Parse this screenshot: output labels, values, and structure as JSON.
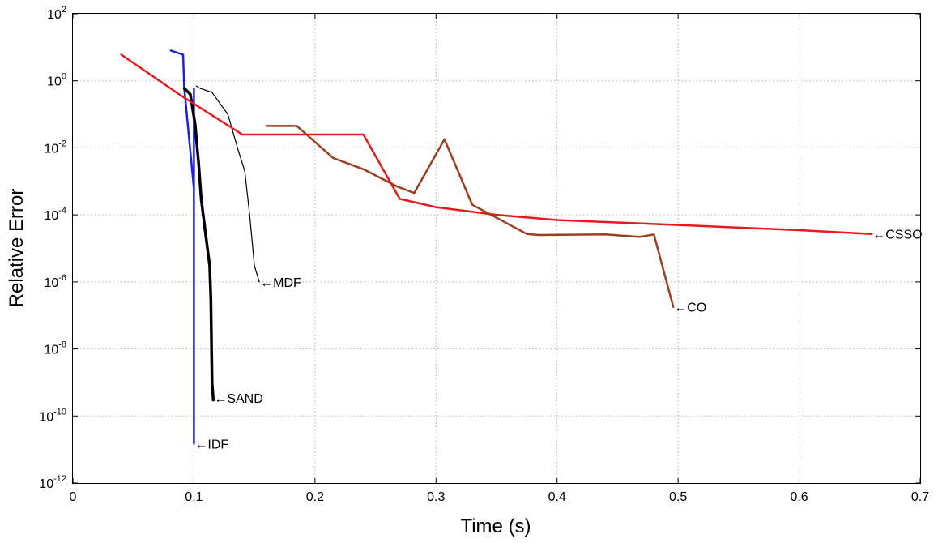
{
  "chart_data": {
    "type": "line",
    "title": "",
    "xlabel": "Time (s)",
    "ylabel": "Relative Error",
    "xlim": [
      0,
      0.7
    ],
    "ylim_exponent": [
      -12,
      2
    ],
    "y_scale": "log",
    "grid": true,
    "x_ticks": [
      "0",
      "0.1",
      "0.2",
      "0.3",
      "0.4",
      "0.5",
      "0.6",
      "0.7"
    ],
    "x_tick_values": [
      0,
      0.1,
      0.2,
      0.3,
      0.4,
      0.5,
      0.6,
      0.7
    ],
    "y_ticks": [
      {
        "base": "10",
        "exp": "-12",
        "value_exp": -12
      },
      {
        "base": "10",
        "exp": "-10",
        "value_exp": -10
      },
      {
        "base": "10",
        "exp": "-8",
        "value_exp": -8
      },
      {
        "base": "10",
        "exp": "-6",
        "value_exp": -6
      },
      {
        "base": "10",
        "exp": "-4",
        "value_exp": -4
      },
      {
        "base": "10",
        "exp": "-2",
        "value_exp": -2
      },
      {
        "base": "10",
        "exp": "0",
        "value_exp": 0
      },
      {
        "base": "10",
        "exp": "2",
        "value_exp": 2
      }
    ],
    "series": [
      {
        "name": "IDF",
        "color": "#1f1fe0",
        "width": 2.5,
        "points": [
          [
            0.081,
            8.0
          ],
          [
            0.091,
            6.0
          ],
          [
            0.092,
            0.6
          ],
          [
            0.1,
            0.0006
          ],
          [
            0.1,
            0.6
          ],
          [
            0.1,
            1.5e-11
          ]
        ]
      },
      {
        "name": "SAND",
        "color": "#000000",
        "width": 3.5,
        "points": [
          [
            0.092,
            0.6
          ],
          [
            0.097,
            0.4
          ],
          [
            0.101,
            0.05
          ],
          [
            0.104,
            0.003
          ],
          [
            0.106,
            0.0003
          ],
          [
            0.109,
            4e-05
          ],
          [
            0.113,
            3e-06
          ],
          [
            0.114,
            3e-07
          ],
          [
            0.115,
            1e-09
          ],
          [
            0.116,
            3e-10
          ]
        ]
      },
      {
        "name": "MDF",
        "color": "#000000",
        "width": 1.2,
        "points": [
          [
            0.102,
            0.7
          ],
          [
            0.105,
            0.6
          ],
          [
            0.115,
            0.45
          ],
          [
            0.128,
            0.1
          ],
          [
            0.136,
            0.01
          ],
          [
            0.142,
            0.002
          ],
          [
            0.146,
            0.0001
          ],
          [
            0.15,
            3e-06
          ],
          [
            0.154,
            1e-06
          ]
        ]
      },
      {
        "name": "CSSO",
        "color": "#e8191c",
        "width": 2.5,
        "points": [
          [
            0.04,
            6.0
          ],
          [
            0.09,
            0.35
          ],
          [
            0.14,
            0.025
          ],
          [
            0.24,
            0.025
          ],
          [
            0.27,
            0.0003
          ],
          [
            0.3,
            0.00017
          ],
          [
            0.35,
            0.0001
          ],
          [
            0.4,
            7e-05
          ],
          [
            0.5,
            5e-05
          ],
          [
            0.6,
            3.5e-05
          ],
          [
            0.66,
            2.7e-05
          ]
        ]
      },
      {
        "name": "CO",
        "color": "#9a3f1f",
        "width": 2.5,
        "points": [
          [
            0.16,
            0.045
          ],
          [
            0.185,
            0.045
          ],
          [
            0.215,
            0.005
          ],
          [
            0.24,
            0.0023
          ],
          [
            0.268,
            0.0007
          ],
          [
            0.282,
            0.00045
          ],
          [
            0.307,
            0.018
          ],
          [
            0.33,
            0.0002
          ],
          [
            0.375,
            2.7e-05
          ],
          [
            0.385,
            2.5e-05
          ],
          [
            0.44,
            2.6e-05
          ],
          [
            0.468,
            2.2e-05
          ],
          [
            0.48,
            2.6e-05
          ],
          [
            0.496,
            1.8e-07
          ]
        ]
      }
    ],
    "annotations": [
      {
        "text": "←IDF",
        "x": 0.1,
        "y": 1.5e-11
      },
      {
        "text": "←SAND",
        "x": 0.116,
        "y": 3.5e-10
      },
      {
        "text": "←MDF",
        "x": 0.154,
        "y": 1e-06
      },
      {
        "text": "←CO",
        "x": 0.496,
        "y": 1.8e-07
      },
      {
        "text": "←CSSO",
        "x": 0.66,
        "y": 2.7e-05
      }
    ]
  }
}
